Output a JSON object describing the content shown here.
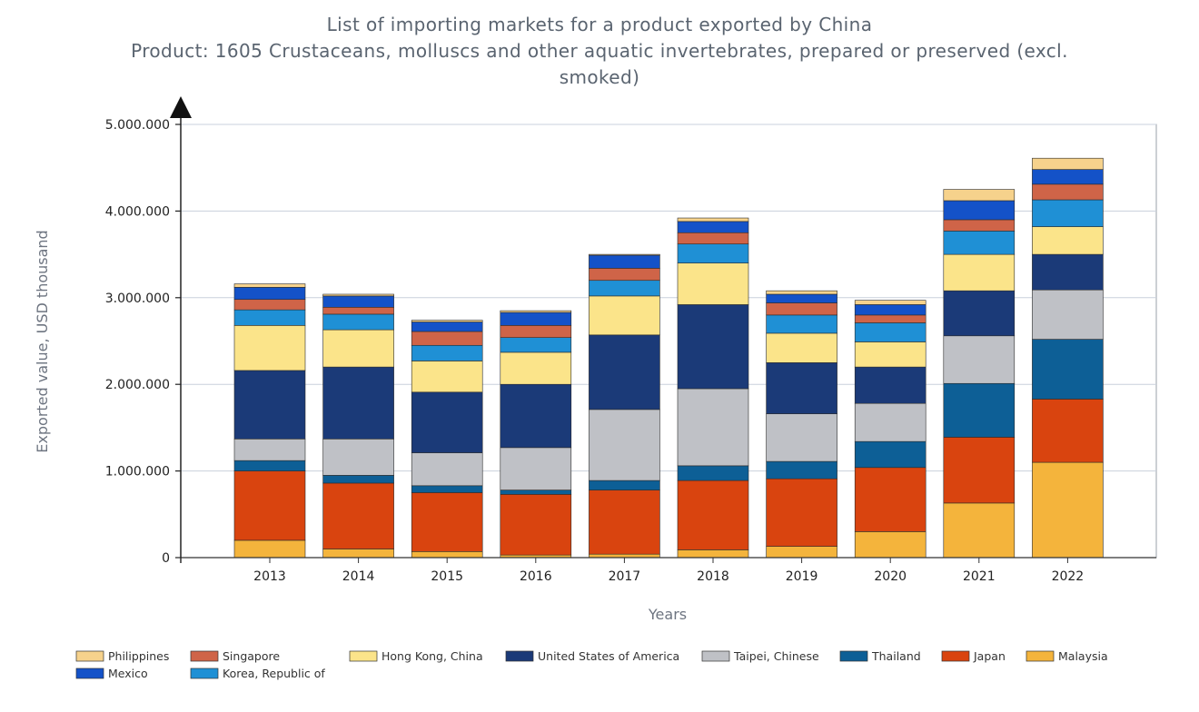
{
  "chart_data": {
    "type": "bar",
    "stacked": true,
    "title": "List of importing markets for a product exported by China",
    "subtitle_line1": "Product: 1605 Crustaceans, molluscs and other aquatic invertebrates, prepared or preserved (excl.",
    "subtitle_line2": "smoked)",
    "xlabel": "Years",
    "ylabel": "Exported value, USD thousand",
    "ylim": [
      0,
      5000000
    ],
    "y_ticks": [
      0,
      1000000,
      2000000,
      3000000,
      4000000,
      5000000
    ],
    "y_tick_labels": [
      "0",
      "1.000.000",
      "2.000.000",
      "3.000.000",
      "4.000.000",
      "5.000.000"
    ],
    "categories": [
      "2013",
      "2014",
      "2015",
      "2016",
      "2017",
      "2018",
      "2019",
      "2020",
      "2021",
      "2022"
    ],
    "series": [
      {
        "name": "Malaysia",
        "color": "#f4b43c",
        "values": [
          200000,
          100000,
          70000,
          30000,
          40000,
          90000,
          130000,
          300000,
          630000,
          1100000
        ]
      },
      {
        "name": "Japan",
        "color": "#d9440f",
        "values": [
          800000,
          760000,
          680000,
          700000,
          740000,
          800000,
          780000,
          740000,
          760000,
          730000
        ]
      },
      {
        "name": "Thailand",
        "color": "#0d5f96",
        "values": [
          120000,
          90000,
          80000,
          50000,
          110000,
          170000,
          200000,
          300000,
          620000,
          690000
        ]
      },
      {
        "name": "Taipei, Chinese",
        "color": "#bfc1c6",
        "values": [
          250000,
          420000,
          380000,
          490000,
          820000,
          890000,
          550000,
          440000,
          550000,
          570000
        ]
      },
      {
        "name": "United States of America",
        "color": "#1b3a78",
        "values": [
          790000,
          830000,
          700000,
          730000,
          860000,
          970000,
          590000,
          420000,
          520000,
          410000
        ]
      },
      {
        "name": "Hong Kong, China",
        "color": "#fbe48a",
        "values": [
          520000,
          430000,
          360000,
          370000,
          450000,
          480000,
          340000,
          290000,
          420000,
          320000
        ]
      },
      {
        "name": "Korea, Republic of",
        "color": "#1f90d5",
        "values": [
          180000,
          180000,
          180000,
          170000,
          180000,
          220000,
          210000,
          220000,
          270000,
          310000
        ]
      },
      {
        "name": "Singapore",
        "color": "#cf6448",
        "values": [
          120000,
          80000,
          160000,
          140000,
          140000,
          130000,
          140000,
          90000,
          130000,
          180000
        ]
      },
      {
        "name": "Mexico",
        "color": "#1452c8",
        "values": [
          140000,
          130000,
          110000,
          150000,
          150000,
          130000,
          100000,
          120000,
          220000,
          170000
        ]
      },
      {
        "name": "Philippines",
        "color": "#f6d28c",
        "values": [
          40000,
          20000,
          20000,
          20000,
          10000,
          40000,
          40000,
          50000,
          130000,
          130000
        ]
      }
    ],
    "legend_order": [
      "Philippines",
      "Singapore",
      "Hong Kong, China",
      "United States of America",
      "Taipei, Chinese",
      "Thailand",
      "Japan",
      "Malaysia",
      "Mexico",
      "Korea, Republic of"
    ],
    "legend_labels": {
      "Philippines": "Philippines",
      "Singapore": "Singapore",
      "Hong Kong, China": "Hong Kong, China",
      "United States of America": "United States of America",
      "Taipei, Chinese": "Taipei, Chinese",
      "Thailand": "Thailand",
      "Japan": "Japan",
      "Malaysia": "Malaysia",
      "Mexico": "Mexico",
      "Korea, Republic of": "Korea, Republic of"
    },
    "grid": true,
    "legend_position": "bottom"
  }
}
